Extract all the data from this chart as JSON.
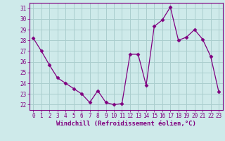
{
  "x": [
    0,
    1,
    2,
    3,
    4,
    5,
    6,
    7,
    8,
    9,
    10,
    11,
    12,
    13,
    14,
    15,
    16,
    17,
    18,
    19,
    20,
    21,
    22,
    23
  ],
  "y": [
    28.2,
    27.0,
    25.7,
    24.5,
    24.0,
    23.5,
    23.0,
    22.2,
    23.3,
    22.2,
    22.0,
    22.1,
    26.7,
    26.7,
    23.8,
    29.3,
    29.9,
    31.1,
    28.0,
    28.3,
    29.0,
    28.1,
    26.5,
    23.2
  ],
  "line_color": "#800080",
  "marker": "D",
  "marker_size": 2.5,
  "bg_color": "#ceeaea",
  "grid_color": "#aacece",
  "xlabel": "Windchill (Refroidissement éolien,°C)",
  "xlabel_fontsize": 6.5,
  "tick_fontsize": 5.5,
  "ylim": [
    21.5,
    31.5
  ],
  "yticks": [
    22,
    23,
    24,
    25,
    26,
    27,
    28,
    29,
    30,
    31
  ],
  "xticks": [
    0,
    1,
    2,
    3,
    4,
    5,
    6,
    7,
    8,
    9,
    10,
    11,
    12,
    13,
    14,
    15,
    16,
    17,
    18,
    19,
    20,
    21,
    22,
    23
  ],
  "xlim": [
    -0.5,
    23.5
  ]
}
